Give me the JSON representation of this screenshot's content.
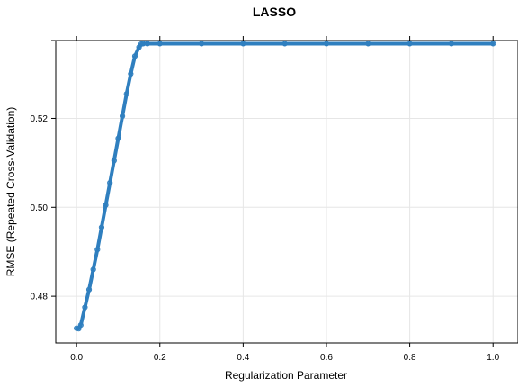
{
  "chart_data": {
    "type": "line",
    "title": "LASSO",
    "xlabel": "Regularization Parameter",
    "ylabel": "RMSE (Repeated Cross-Validation)",
    "xlim": [
      -0.05,
      1.06
    ],
    "ylim": [
      0.4695,
      0.5375
    ],
    "x_ticks": [
      0.0,
      0.2,
      0.4,
      0.6,
      0.8,
      1.0
    ],
    "x_tick_labels": [
      "0.0",
      "0.2",
      "0.4",
      "0.6",
      "0.8",
      "1.0"
    ],
    "y_ticks": [
      0.48,
      0.5,
      0.52
    ],
    "y_tick_labels": [
      "0.48",
      "0.50",
      "0.52"
    ],
    "grid": true,
    "series": [
      {
        "color": "#2f7fbf",
        "marker": "open-circle",
        "x": [
          0.0,
          0.005,
          0.01,
          0.02,
          0.03,
          0.04,
          0.05,
          0.06,
          0.07,
          0.08,
          0.09,
          0.1,
          0.11,
          0.12,
          0.13,
          0.14,
          0.15,
          0.155,
          0.16,
          0.17,
          0.2,
          0.3,
          0.4,
          0.5,
          0.6,
          0.7,
          0.8,
          0.9,
          1.0
        ],
        "values": [
          0.4728,
          0.4727,
          0.4735,
          0.4775,
          0.4815,
          0.486,
          0.4905,
          0.4955,
          0.5005,
          0.5055,
          0.5105,
          0.5155,
          0.5205,
          0.5255,
          0.53,
          0.534,
          0.536,
          0.5367,
          0.5368,
          0.5368,
          0.5368,
          0.5368,
          0.5368,
          0.5368,
          0.5368,
          0.5368,
          0.5368,
          0.5368,
          0.5368
        ]
      }
    ]
  }
}
